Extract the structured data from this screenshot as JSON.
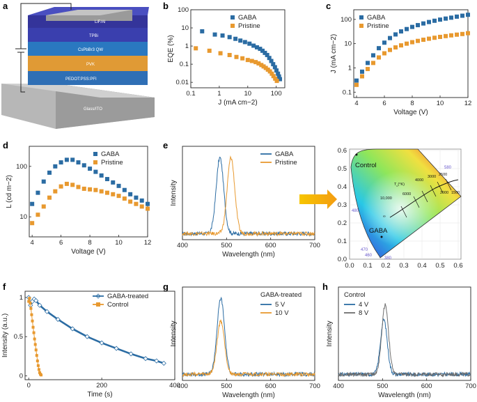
{
  "colors": {
    "gaba": "#2b6ca3",
    "pristine": "#e8992f",
    "control_8v": "#6e6e6e",
    "arrow": "#f5b800"
  },
  "panels": {
    "a": {
      "label": "a",
      "layers": [
        "LiF/Al",
        "TPBi",
        "CsPbBr3 QW",
        "PVK",
        "PEDOT:PSS:PFI",
        "Glass/ITO"
      ]
    },
    "e_cie": {
      "label_control": "Control",
      "label_gaba": "GABA",
      "tc_label": "T",
      "tc_sub": "c",
      "tc_unit": "(°K)",
      "temps": [
        "10,000",
        "6000",
        "4000",
        "3000",
        "2500",
        "2000",
        "1500",
        "∞"
      ],
      "wavelengths": [
        "580",
        "480",
        "470",
        "460",
        "380"
      ],
      "xticks": [
        "0.0",
        "0.1",
        "0.2",
        "0.3",
        "0.4",
        "0.5",
        "0.6"
      ],
      "yticks": [
        "0.0",
        "0.1",
        "0.2",
        "0.3",
        "0.4",
        "0.5",
        "0.6"
      ]
    }
  },
  "chart_data": [
    {
      "id": "b",
      "label": "b",
      "type": "scatter",
      "xlabel": "J (mA cm−2)",
      "ylabel": "EQE (%)",
      "xscale": "log",
      "yscale": "log",
      "xlim": [
        0.1,
        200
      ],
      "ylim": [
        0.005,
        100
      ],
      "xticks": [
        "0.1",
        "1",
        "10",
        "100"
      ],
      "yticks": [
        "0.01",
        "0.1",
        "1",
        "10",
        "100"
      ],
      "legend": "top-right",
      "series": [
        {
          "name": "GABA",
          "x": [
            0.25,
            0.7,
            1.3,
            2.3,
            3.7,
            5.5,
            8,
            11.5,
            16,
            21,
            27,
            33,
            40,
            48,
            57,
            67,
            78,
            90,
            102,
            115,
            125,
            135
          ],
          "y": [
            6.5,
            4.3,
            3.8,
            3.1,
            2.5,
            2.0,
            1.65,
            1.35,
            1.05,
            0.85,
            0.7,
            0.55,
            0.42,
            0.32,
            0.22,
            0.15,
            0.1,
            0.068,
            0.045,
            0.03,
            0.021,
            0.015
          ]
        },
        {
          "name": "Pristine",
          "x": [
            0.15,
            0.45,
            1.1,
            2.3,
            4,
            6.5,
            10,
            14,
            19,
            24,
            30,
            36,
            43,
            51,
            60,
            70,
            80,
            92,
            105
          ],
          "y": [
            0.75,
            0.55,
            0.4,
            0.32,
            0.25,
            0.21,
            0.17,
            0.15,
            0.13,
            0.11,
            0.09,
            0.075,
            0.062,
            0.05,
            0.04,
            0.03,
            0.022,
            0.016,
            0.012
          ]
        }
      ]
    },
    {
      "id": "c",
      "label": "c",
      "type": "scatter",
      "xlabel": "Voltage (V)",
      "ylabel": "J (mA cm−2)",
      "yscale": "log",
      "xlim": [
        3.8,
        12
      ],
      "ylim": [
        0.06,
        250
      ],
      "xticks": [
        "4",
        "6",
        "8",
        "10",
        "12"
      ],
      "yticks": [
        "0.1",
        "1",
        "10",
        "100"
      ],
      "legend": "top-left",
      "series": [
        {
          "name": "GABA",
          "x": [
            4,
            4.4,
            4.8,
            5.2,
            5.6,
            6,
            6.4,
            6.8,
            7.2,
            7.6,
            8,
            8.4,
            8.8,
            9.2,
            9.6,
            10,
            10.4,
            10.8,
            11.2,
            11.6,
            12
          ],
          "y": [
            0.3,
            0.7,
            1.6,
            3.3,
            6.5,
            11,
            17,
            24,
            32,
            40,
            49,
            58,
            68,
            78,
            88,
            98,
            108,
            118,
            130,
            142,
            155
          ]
        },
        {
          "name": "Pristine",
          "x": [
            4,
            4.4,
            4.8,
            5.2,
            5.6,
            6,
            6.4,
            6.8,
            7.2,
            7.6,
            8,
            8.4,
            8.8,
            9.2,
            9.6,
            10,
            10.4,
            10.8,
            11.2,
            11.6,
            12
          ],
          "y": [
            0.2,
            0.45,
            0.9,
            1.6,
            2.7,
            4,
            5.5,
            7,
            8.5,
            10,
            11.5,
            13,
            14.5,
            16,
            17.5,
            19,
            20.5,
            22,
            23.5,
            25,
            27
          ]
        }
      ]
    },
    {
      "id": "d",
      "label": "d",
      "type": "scatter",
      "xlabel": "Voltage (V)",
      "ylabel": "L (cd m−2)",
      "yscale": "log",
      "xlim": [
        3.8,
        12
      ],
      "ylim": [
        4,
        250
      ],
      "xticks": [
        "4",
        "6",
        "8",
        "10",
        "12"
      ],
      "yticks": [
        "10",
        "100"
      ],
      "legend": "top-right",
      "series": [
        {
          "name": "GABA",
          "x": [
            4,
            4.4,
            4.8,
            5.2,
            5.6,
            6,
            6.4,
            6.8,
            7.2,
            7.6,
            8,
            8.4,
            8.8,
            9.2,
            9.6,
            10,
            10.4,
            10.8,
            11.2,
            11.6,
            12
          ],
          "y": [
            18,
            30,
            50,
            75,
            100,
            120,
            135,
            135,
            120,
            105,
            90,
            78,
            66,
            56,
            48,
            41,
            34,
            28,
            24,
            21,
            18
          ]
        },
        {
          "name": "Pristine",
          "x": [
            4,
            4.4,
            4.8,
            5.2,
            5.6,
            6,
            6.4,
            6.8,
            7.2,
            7.6,
            8,
            8.4,
            8.8,
            9.2,
            9.6,
            10,
            10.4,
            10.8,
            11.2,
            11.6,
            12
          ],
          "y": [
            7.5,
            11,
            16,
            24,
            32,
            40,
            45,
            43,
            39,
            36,
            35,
            34,
            32,
            30,
            28,
            26,
            23,
            20,
            18,
            16,
            14.5
          ]
        }
      ]
    },
    {
      "id": "e",
      "label": "e",
      "type": "line",
      "xlabel": "Wavelength (nm)",
      "ylabel": "Intensity",
      "xlim": [
        400,
        700
      ],
      "xticks": [
        "400",
        "500",
        "600",
        "700"
      ],
      "legend": "top-right",
      "series": [
        {
          "name": "GABA",
          "peak": 485,
          "fwhm": 20,
          "amplitude": 1.0
        },
        {
          "name": "Pristine",
          "peak": 510,
          "fwhm": 20,
          "amplitude": 1.0
        }
      ]
    },
    {
      "id": "f",
      "label": "f",
      "type": "line",
      "xlabel": "Time (s)",
      "ylabel": "Intensity (a.u.)",
      "xlim": [
        -10,
        400
      ],
      "ylim": [
        -0.05,
        1.08
      ],
      "xticks": [
        "0",
        "200",
        "400"
      ],
      "yticks": [
        "0",
        "0.5",
        "1"
      ],
      "legend": "top-right",
      "series": [
        {
          "name": "GABA-treated",
          "x": [
            0,
            5,
            10,
            15,
            20,
            30,
            50,
            80,
            120,
            160,
            200,
            240,
            280,
            320,
            350,
            370
          ],
          "y": [
            1.0,
            0.9,
            0.95,
            0.98,
            0.96,
            0.9,
            0.82,
            0.72,
            0.6,
            0.5,
            0.42,
            0.35,
            0.28,
            0.22,
            0.19,
            0.16
          ]
        },
        {
          "name": "Control",
          "x": [
            0,
            2,
            4,
            6,
            8,
            10,
            12,
            14,
            16,
            18,
            20,
            22,
            24,
            26,
            28,
            30,
            32,
            34
          ],
          "y": [
            0.95,
            0.99,
            0.93,
            0.86,
            0.78,
            0.7,
            0.62,
            0.55,
            0.47,
            0.4,
            0.33,
            0.26,
            0.19,
            0.13,
            0.08,
            0.04,
            0.02,
            0.01
          ]
        }
      ]
    },
    {
      "id": "g",
      "label": "g",
      "type": "line",
      "xlabel": "Wavelength (nm)",
      "ylabel": "Intensity",
      "xlim": [
        400,
        700
      ],
      "xticks": [
        "400",
        "500",
        "600",
        "700"
      ],
      "legend_title": "GABA-treated",
      "legend": "top-right",
      "series": [
        {
          "name": "5 V",
          "peak": 487,
          "fwhm": 20,
          "amplitude": 1.0
        },
        {
          "name": "10 V",
          "peak": 487,
          "fwhm": 20,
          "amplitude": 0.7
        }
      ]
    },
    {
      "id": "h",
      "label": "h",
      "type": "line",
      "xlabel": "Wavelength (nm)",
      "ylabel": "Intensity",
      "xlim": [
        400,
        700
      ],
      "xticks": [
        "400",
        "500",
        "600",
        "700"
      ],
      "legend_title": "Control",
      "legend": "top-left",
      "series": [
        {
          "name": "4 V",
          "peak": 503,
          "fwhm": 18,
          "amplitude": 0.72
        },
        {
          "name": "8 V",
          "peak": 506,
          "fwhm": 18,
          "amplitude": 0.92
        }
      ]
    }
  ]
}
